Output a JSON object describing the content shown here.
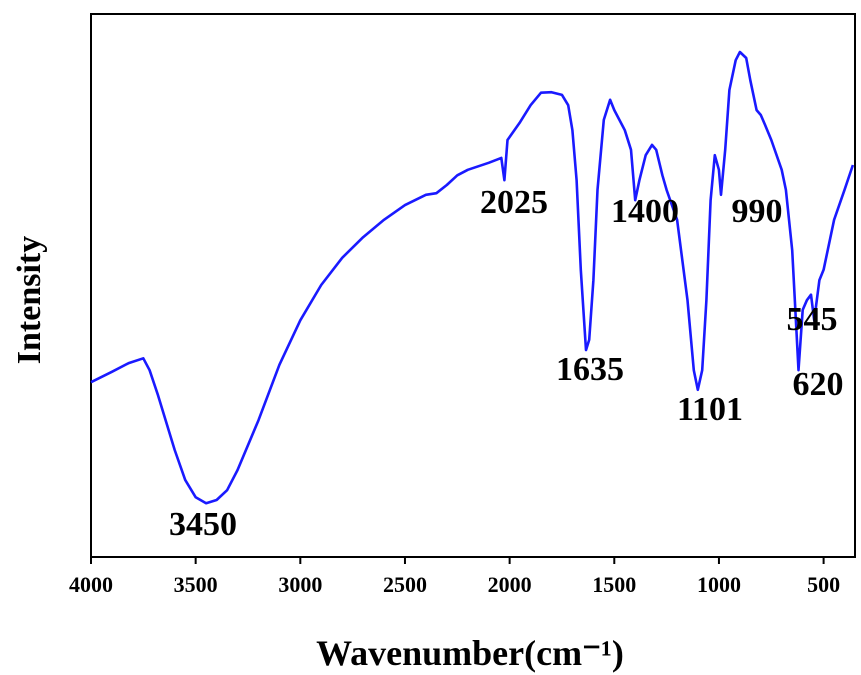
{
  "chart_data": {
    "type": "line",
    "x_label": "Wavenumber(cm⁻¹)",
    "y_label": "Intensity",
    "xlim": [
      4000,
      350
    ],
    "ylim": [
      0,
      100
    ],
    "xticks": [
      4000,
      3500,
      3000,
      2500,
      2000,
      1500,
      1000,
      500
    ],
    "annotations": [
      "3450",
      "2025",
      "1635",
      "1400",
      "1101",
      "990",
      "545",
      "620"
    ],
    "series": [
      {
        "color": "#1a1aff",
        "x": [
          4000,
          3900,
          3820,
          3750,
          3720,
          3680,
          3600,
          3550,
          3500,
          3450,
          3400,
          3350,
          3300,
          3200,
          3100,
          3000,
          2900,
          2800,
          2700,
          2600,
          2500,
          2400,
          2350,
          2300,
          2250,
          2200,
          2100,
          2040,
          2025,
          2010,
          1950,
          1900,
          1850,
          1800,
          1750,
          1720,
          1700,
          1680,
          1660,
          1635,
          1620,
          1600,
          1580,
          1550,
          1520,
          1500,
          1450,
          1420,
          1400,
          1380,
          1350,
          1320,
          1300,
          1270,
          1250,
          1200,
          1150,
          1120,
          1101,
          1080,
          1060,
          1040,
          1020,
          1000,
          990,
          970,
          950,
          920,
          900,
          870,
          850,
          820,
          800,
          780,
          750,
          700,
          680,
          650,
          630,
          620,
          600,
          580,
          560,
          545,
          520,
          500,
          450,
          400,
          360
        ],
        "values": [
          32.2,
          34.1,
          35.7,
          36.6,
          34.4,
          29.8,
          19.7,
          14.2,
          11.0,
          9.9,
          10.5,
          12.3,
          16.0,
          25.2,
          35.4,
          43.6,
          50.1,
          55.1,
          58.9,
          62.1,
          64.8,
          66.7,
          67.0,
          68.5,
          70.3,
          71.3,
          72.6,
          73.5,
          69.4,
          76.8,
          80.1,
          83.2,
          85.5,
          85.6,
          85.1,
          83.2,
          78.6,
          69.4,
          52.9,
          38.1,
          40.0,
          51.0,
          67.6,
          80.5,
          84.2,
          82.3,
          78.6,
          75.0,
          65.7,
          69.4,
          74.0,
          75.9,
          75.0,
          70.3,
          67.6,
          62.1,
          47.3,
          34.4,
          30.8,
          34.4,
          47.3,
          65.7,
          74.0,
          71.3,
          66.7,
          75.0,
          86.0,
          91.5,
          93.0,
          91.9,
          87.8,
          82.3,
          81.4,
          79.6,
          76.8,
          71.3,
          67.6,
          56.5,
          41.8,
          34.4,
          45.5,
          47.3,
          48.3,
          43.6,
          51.0,
          52.9,
          62.1,
          67.6,
          72.2
        ]
      }
    ]
  }
}
